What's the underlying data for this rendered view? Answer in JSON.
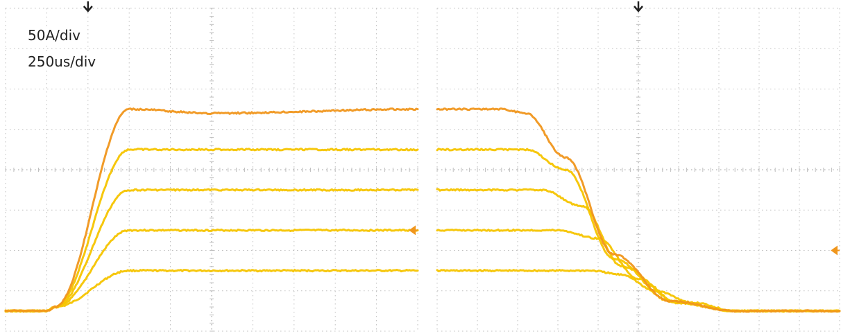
{
  "chart_data": [
    {
      "type": "line",
      "panel": "rise",
      "annotations": [
        "50A/div",
        "250us/div"
      ],
      "x_unit": "us",
      "y_unit": "A",
      "grid": true,
      "x_divisions": 10,
      "y_divisions": 8,
      "xlim": [
        0,
        2500
      ],
      "ylim": [
        -25,
        375
      ],
      "trigger_x": 500,
      "level_marker_y": 100,
      "colors": {
        "trace_high": "#f0961c",
        "trace": "#f5c400",
        "grid": "#bfbfbf",
        "marker": "#222222"
      },
      "series": [
        {
          "x": [
            0,
            250,
            300,
            750,
            1250,
            2500
          ],
          "values": [
            0,
            0,
            5,
            50,
            50,
            50
          ]
        },
        {
          "x": [
            0,
            250,
            300,
            750,
            1250,
            2500
          ],
          "values": [
            0,
            0,
            5,
            100,
            100,
            100
          ]
        },
        {
          "x": [
            0,
            250,
            300,
            750,
            1250,
            2500
          ],
          "values": [
            0,
            0,
            5,
            150,
            150,
            150
          ]
        },
        {
          "x": [
            0,
            250,
            300,
            750,
            1250,
            2500
          ],
          "values": [
            0,
            0,
            5,
            200,
            200,
            200
          ]
        },
        {
          "x": [
            0,
            250,
            300,
            750,
            1250,
            2500
          ],
          "values": [
            0,
            0,
            5,
            250,
            245,
            250
          ]
        }
      ]
    },
    {
      "type": "line",
      "panel": "fall",
      "x_unit": "us",
      "y_unit": "A",
      "grid": true,
      "x_divisions": 10,
      "y_divisions": 8,
      "xlim": [
        0,
        2500
      ],
      "ylim": [
        -25,
        375
      ],
      "trigger_x": 1250,
      "level_marker_y": 75,
      "colors": {
        "trace_high": "#f0961c",
        "trace": "#f5c400",
        "grid": "#bfbfbf",
        "marker": "#222222"
      },
      "series": [
        {
          "x": [
            0,
            950,
            1150,
            1350,
            1600,
            1850,
            2500
          ],
          "values": [
            50,
            50,
            45,
            25,
            10,
            0,
            0
          ]
        },
        {
          "x": [
            0,
            750,
            1000,
            1250,
            1500,
            1850,
            2500
          ],
          "values": [
            100,
            100,
            90,
            40,
            10,
            0,
            0
          ]
        },
        {
          "x": [
            0,
            650,
            900,
            1150,
            1500,
            1850,
            2500
          ],
          "values": [
            150,
            150,
            130,
            55,
            10,
            0,
            0
          ]
        },
        {
          "x": [
            0,
            550,
            800,
            1100,
            1450,
            1850,
            2500
          ],
          "values": [
            200,
            200,
            175,
            65,
            12,
            0,
            0
          ]
        },
        {
          "x": [
            0,
            400,
            550,
            800,
            1100,
            1450,
            1850,
            2500
          ],
          "values": [
            250,
            250,
            245,
            190,
            70,
            12,
            0,
            0
          ]
        }
      ]
    }
  ]
}
